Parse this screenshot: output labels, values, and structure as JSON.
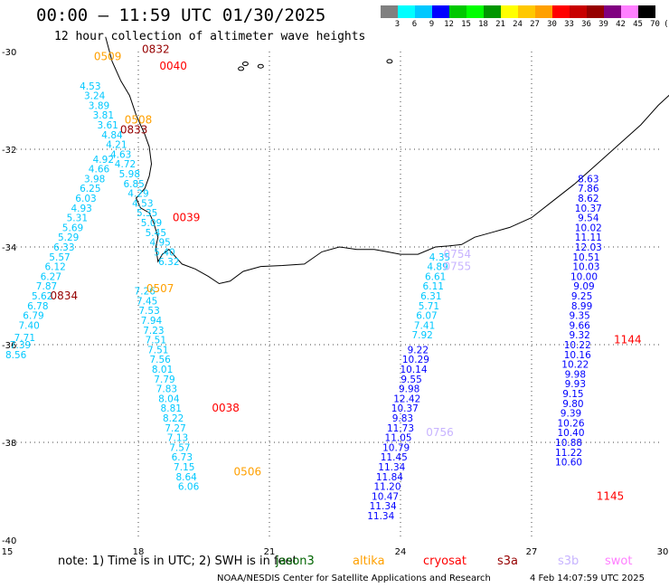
{
  "header": {
    "title": "00:00 – 11:59 UTC 01/30/2025",
    "subtitle": "12 hour collection of altimeter wave heights"
  },
  "colorbar": {
    "unit_label": "(ft)",
    "labels": [
      "3",
      "6",
      "9",
      "12",
      "15",
      "18",
      "21",
      "24",
      "27",
      "30",
      "33",
      "36",
      "39",
      "42",
      "45",
      "70"
    ],
    "colors": [
      "#808080",
      "#00ffff",
      "#00c8ff",
      "#0000ff",
      "#00c800",
      "#00ff00",
      "#009600",
      "#ffff00",
      "#ffc800",
      "#ffa000",
      "#ff0000",
      "#c80000",
      "#960000",
      "#800080",
      "#ff80ff",
      "#000000"
    ]
  },
  "map": {
    "lon_ticks": [
      "15",
      "18",
      "21",
      "24",
      "27",
      "30"
    ],
    "lat_ticks": [
      "-30",
      "-32",
      "-34",
      "-36",
      "-38",
      "-40"
    ],
    "lon_range": [
      15,
      30
    ],
    "lat_range": [
      -40,
      -30
    ],
    "grid": true
  },
  "tracks": [
    {
      "id": "west-1",
      "color": "#00c8ff",
      "x": [
        15.2,
        15.3,
        15.4,
        15.5,
        15.6,
        15.7,
        15.8,
        15.9,
        16.0,
        16.1,
        16.2,
        16.3,
        16.4,
        16.5,
        16.6,
        16.7,
        16.8,
        16.9,
        17.0,
        17.1,
        17.2
      ],
      "y": [
        -36.2,
        -36.0,
        -35.85,
        -35.6,
        -35.4,
        -35.2,
        -35.0,
        -34.8,
        -34.6,
        -34.4,
        -34.2,
        -34.0,
        -33.8,
        -33.6,
        -33.4,
        -33.2,
        -33.0,
        -32.8,
        -32.6,
        -32.4,
        -32.2
      ],
      "labels": [
        "8.56",
        "7.39",
        "7.71",
        "7.40",
        "6.79",
        "6.78",
        "5.62",
        "7.87",
        "6.27",
        "6.12",
        "5.57",
        "6.33",
        "5.29",
        "5.69",
        "5.31",
        "4.93",
        "6.03",
        "6.25",
        "3.98",
        "4.66",
        "4.92"
      ]
    },
    {
      "id": "west-2",
      "color": "#00c8ff",
      "x": [
        16.9,
        17.0,
        17.1,
        17.2,
        17.3,
        17.4,
        17.5,
        17.6,
        17.7,
        17.8,
        17.9,
        18.0,
        18.1,
        18.2,
        18.3,
        18.4,
        18.5,
        18.6,
        18.7
      ],
      "y": [
        -30.7,
        -30.9,
        -31.1,
        -31.3,
        -31.5,
        -31.7,
        -31.9,
        -32.1,
        -32.3,
        -32.5,
        -32.7,
        -32.9,
        -33.1,
        -33.3,
        -33.5,
        -33.7,
        -33.9,
        -34.1,
        -34.3
      ],
      "labels": [
        "4.53",
        "3.24",
        "3.89",
        "3.81",
        "3.61",
        "4.84",
        "4.21",
        "4.63",
        "4.72",
        "5.98",
        "6.85",
        "4.29",
        "4.53",
        "5.35",
        "5.09",
        "5.45",
        "4.95",
        "5.40",
        "6.32"
      ]
    },
    {
      "id": "central-west",
      "color": "#00c8ff",
      "x": [
        18.15,
        18.2,
        18.25,
        18.3,
        18.35,
        18.4,
        18.45,
        18.5,
        18.55,
        18.6,
        18.65,
        18.7,
        18.75,
        18.8,
        18.85,
        18.9,
        18.95,
        19.0,
        19.05,
        19.1,
        19.15
      ],
      "y": [
        -34.9,
        -35.1,
        -35.3,
        -35.5,
        -35.7,
        -35.9,
        -36.1,
        -36.3,
        -36.5,
        -36.7,
        -36.9,
        -37.1,
        -37.3,
        -37.5,
        -37.7,
        -37.9,
        -38.1,
        -38.3,
        -38.5,
        -38.7,
        -38.9
      ],
      "labels": [
        "7.26",
        "7.45",
        "7.53",
        "7.94",
        "7.23",
        "7.51",
        "7.51",
        "7.56",
        "8.01",
        "7.79",
        "7.83",
        "8.04",
        "8.81",
        "8.22",
        "7.27",
        "7.13",
        "7.57",
        "6.73",
        "7.15",
        "8.64",
        "6.06"
      ]
    },
    {
      "id": "central-east",
      "color": "#00c8ff",
      "x": [
        24.9,
        24.85,
        24.8,
        24.75,
        24.7,
        24.65,
        24.6,
        24.55,
        24.5
      ],
      "y": [
        -34.2,
        -34.4,
        -34.6,
        -34.8,
        -35.0,
        -35.2,
        -35.4,
        -35.6,
        -35.8
      ],
      "labels": [
        "4.35",
        "4.89",
        "6.61",
        "6.11",
        "6.31",
        "5.71",
        "6.07",
        "7.41",
        "7.92"
      ]
    },
    {
      "id": "east-1",
      "color": "#0000ff",
      "x": [
        24.4,
        24.35,
        24.3,
        24.25,
        24.2,
        24.15,
        24.1,
        24.05,
        24.0,
        23.95,
        23.9,
        23.85,
        23.8,
        23.75,
        23.7,
        23.65,
        23.6,
        23.55
      ],
      "y": [
        -36.1,
        -36.3,
        -36.5,
        -36.7,
        -36.9,
        -37.1,
        -37.3,
        -37.5,
        -37.7,
        -37.9,
        -38.1,
        -38.3,
        -38.5,
        -38.7,
        -38.9,
        -39.1,
        -39.3,
        -39.5
      ],
      "labels": [
        "9.22",
        "10.29",
        "10.14",
        "9.55",
        "9.98",
        "12.42",
        "10.37",
        "9.83",
        "11.73",
        "11.05",
        "10.79",
        "11.45",
        "11.34",
        "11.84",
        "11.20",
        "10.47",
        "11.34",
        "11.34"
      ]
    },
    {
      "id": "east-2",
      "color": "#0000ff",
      "x": [
        28.3,
        28.3,
        28.3,
        28.3,
        28.3,
        28.3,
        28.3,
        28.3,
        28.25,
        28.25,
        28.2,
        28.2,
        28.15,
        28.15,
        28.1,
        28.1,
        28.1,
        28.05,
        28.05,
        28.0,
        28.0,
        28.0,
        27.95,
        27.95,
        27.9,
        27.9,
        27.9,
        27.85,
        27.85,
        27.85
      ],
      "y": [
        -32.6,
        -32.8,
        -33.0,
        -33.2,
        -33.4,
        -33.6,
        -33.8,
        -34.0,
        -34.2,
        -34.4,
        -34.6,
        -34.8,
        -35.0,
        -35.2,
        -35.4,
        -35.6,
        -35.8,
        -36.0,
        -36.2,
        -36.4,
        -36.6,
        -36.8,
        -37.0,
        -37.2,
        -37.4,
        -37.6,
        -37.8,
        -38.0,
        -38.2,
        -38.4
      ],
      "labels": [
        "8.63",
        "7.86",
        "8.62",
        "10.37",
        "9.54",
        "10.02",
        "11.11",
        "12.03",
        "10.51",
        "10.03",
        "10.00",
        "9.09",
        "9.25",
        "8.99",
        "9.35",
        "9.66",
        "9.32",
        "10.22",
        "10.16",
        "10.22",
        "9.98",
        "9.93",
        "9.15",
        "9.80",
        "9.39",
        "10.26",
        "10.40",
        "10.88",
        "11.22",
        "10.60"
      ]
    }
  ],
  "pass_times": [
    {
      "text": "0832",
      "color": "#960000",
      "lon": 18.4,
      "lat": -29.95
    },
    {
      "text": "0040",
      "color": "#ff0000",
      "lon": 18.8,
      "lat": -30.3
    },
    {
      "text": "0509",
      "color": "#ffa000",
      "lon": 17.3,
      "lat": -30.1
    },
    {
      "text": "0508",
      "color": "#ffa000",
      "lon": 18.0,
      "lat": -31.4
    },
    {
      "text": "0833",
      "color": "#960000",
      "lon": 17.9,
      "lat": -31.6
    },
    {
      "text": "0039",
      "color": "#ff0000",
      "lon": 19.1,
      "lat": -33.4
    },
    {
      "text": "0507",
      "color": "#ffa000",
      "lon": 18.5,
      "lat": -34.85
    },
    {
      "text": "0834",
      "color": "#960000",
      "lon": 16.3,
      "lat": -35.0
    },
    {
      "text": "0038",
      "color": "#ff0000",
      "lon": 20.0,
      "lat": -37.3
    },
    {
      "text": "0506",
      "color": "#ffa000",
      "lon": 20.5,
      "lat": -38.6
    },
    {
      "text": "0754",
      "color": "#c8b4ff",
      "lon": 25.3,
      "lat": -34.15
    },
    {
      "text": "0755",
      "color": "#c8b4ff",
      "lon": 25.3,
      "lat": -34.4
    },
    {
      "text": "0756",
      "color": "#c8b4ff",
      "lon": 24.9,
      "lat": -37.8
    },
    {
      "text": "1144",
      "color": "#ff0000",
      "lon": 29.2,
      "lat": -35.9
    },
    {
      "text": "1145",
      "color": "#ff0000",
      "lon": 28.8,
      "lat": -39.1
    }
  ],
  "note": "note:  1) Time is in UTC; 2) SWH is in feet",
  "legend": [
    {
      "name": "jason3",
      "color": "#006400"
    },
    {
      "name": "altika",
      "color": "#ffa000"
    },
    {
      "name": "cryosat",
      "color": "#ff0000"
    },
    {
      "name": "s3a",
      "color": "#960000"
    },
    {
      "name": "s3b",
      "color": "#c8b4ff"
    },
    {
      "name": "swot",
      "color": "#ff80ff"
    }
  ],
  "footer": {
    "credit": "NOAA/NESDIS Center for Satellite Applications and Research",
    "timestamp": "4 Feb 14:07:59 UTC 2025"
  }
}
